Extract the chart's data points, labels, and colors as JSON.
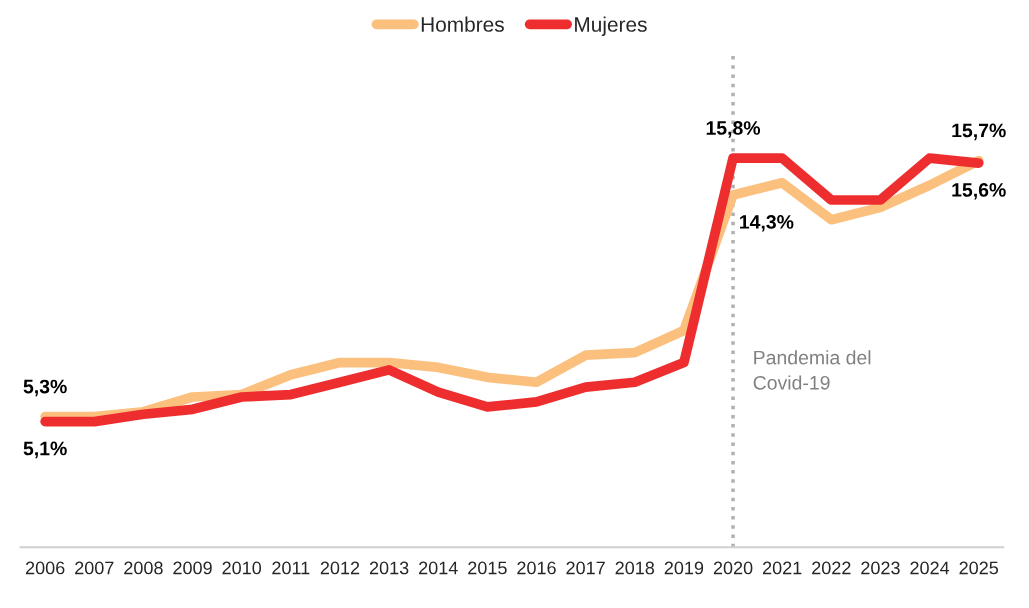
{
  "chart_data": {
    "type": "line",
    "categories": [
      "2006",
      "2007",
      "2008",
      "2009",
      "2010",
      "2011",
      "2012",
      "2013",
      "2014",
      "2015",
      "2016",
      "2017",
      "2018",
      "2019",
      "2020",
      "2021",
      "2022",
      "2023",
      "2024",
      "2025"
    ],
    "series": [
      {
        "name": "Hombres",
        "color": "#fbc07e",
        "values": [
          5.3,
          5.3,
          5.5,
          6.1,
          6.2,
          7.0,
          7.5,
          7.5,
          7.3,
          6.9,
          6.7,
          7.8,
          7.9,
          8.8,
          14.3,
          14.8,
          13.3,
          13.8,
          14.7,
          15.7
        ],
        "value_labels": [
          "5,3%",
          null,
          null,
          null,
          null,
          null,
          null,
          null,
          null,
          null,
          null,
          null,
          null,
          null,
          "14,3%",
          null,
          null,
          null,
          null,
          "15,7%"
        ]
      },
      {
        "name": "Mujeres",
        "color": "#ee2e2e",
        "values": [
          5.1,
          5.1,
          5.4,
          5.6,
          6.1,
          6.2,
          6.7,
          7.2,
          6.3,
          5.7,
          5.9,
          6.5,
          6.7,
          7.5,
          15.8,
          15.8,
          14.1,
          14.1,
          15.8,
          15.6
        ],
        "value_labels": [
          "5,1%",
          null,
          null,
          null,
          null,
          null,
          null,
          null,
          null,
          null,
          null,
          null,
          null,
          null,
          "15,8%",
          null,
          null,
          null,
          null,
          "15,6%"
        ]
      }
    ],
    "ylim": [
      0,
      20
    ],
    "tick_labels": "x",
    "grid": false,
    "legend": "top",
    "marker": "none",
    "line_style": "solid",
    "ref_lines": [
      {
        "axis": "x",
        "value": "2020",
        "label": "Pandemia del\nCovid-19",
        "color": "#b0b0b0",
        "line_style": "dotted"
      }
    ]
  }
}
